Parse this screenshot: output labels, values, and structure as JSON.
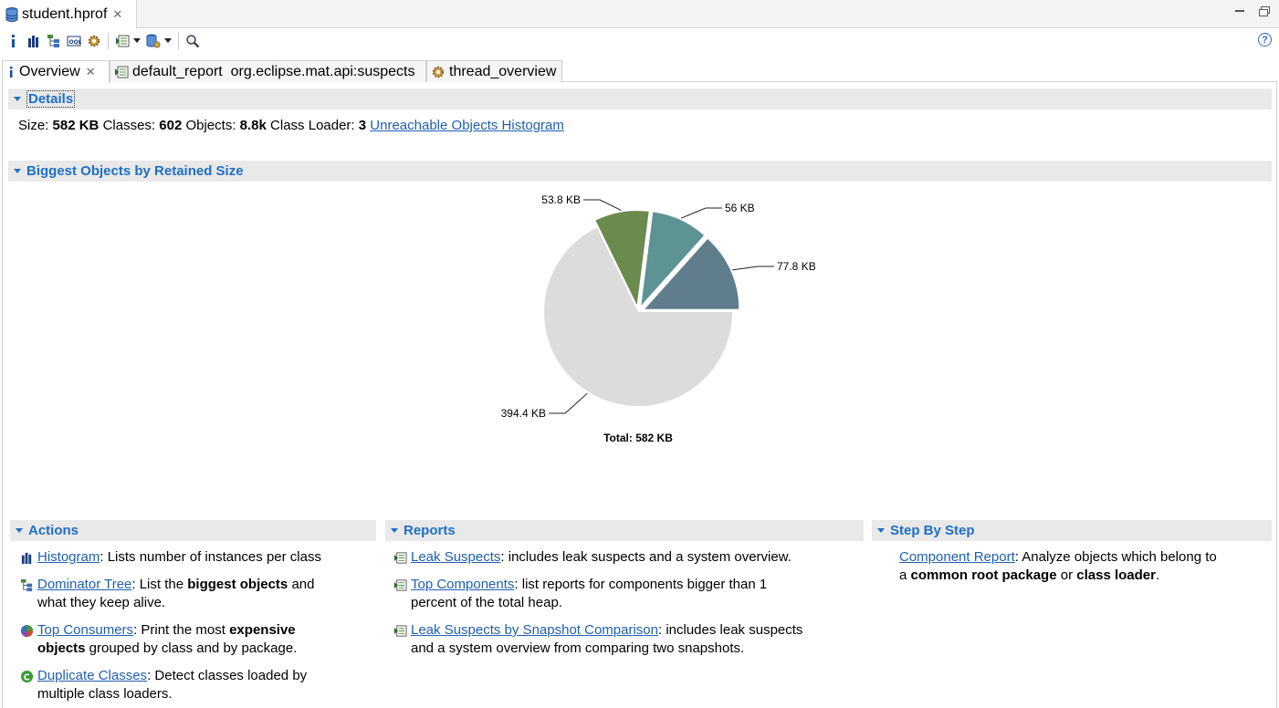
{
  "editor": {
    "tab_title": "student.hprof"
  },
  "tabs": [
    {
      "label": "Overview"
    },
    {
      "label": "default_report  org.eclipse.mat.api:suspects"
    },
    {
      "label": "thread_overview"
    }
  ],
  "details": {
    "header": "Details",
    "size_label": "Size:",
    "size_value": "582 KB",
    "classes_label": "Classes:",
    "classes_value": "602",
    "objects_label": "Objects:",
    "objects_value": "8.8k",
    "loader_label": "Class Loader:",
    "loader_value": "3",
    "link": "Unreachable Objects Histogram"
  },
  "biggest": {
    "header": "Biggest Objects by Retained Size",
    "total_label": "Total: 582 KB"
  },
  "chart_data": {
    "type": "pie",
    "total": 582,
    "slices": [
      {
        "label": "77.8 KB",
        "value": 77.8,
        "color": "#607d8b"
      },
      {
        "label": "56 KB",
        "value": 56,
        "color": "#5d9393"
      },
      {
        "label": "53.8 KB",
        "value": 53.8,
        "color": "#6b8a4e"
      },
      {
        "label": "394.4 KB",
        "value": 394.4,
        "color": "#dcdcdc"
      }
    ]
  },
  "actions": {
    "header": "Actions",
    "items": [
      {
        "link": "Histogram",
        "t1": ": Lists number of instances per class"
      },
      {
        "link": "Dominator Tree",
        "t1": ": List the ",
        "b1": "biggest objects",
        "t2": " and",
        "line2": "what they keep alive."
      },
      {
        "link": "Top Consumers",
        "t1": ": Print the most ",
        "b1": "expensive",
        "line2b": "objects",
        "line2": " grouped by class and by package."
      },
      {
        "link": "Duplicate Classes",
        "t1": ": Detect classes loaded by",
        "line2": "multiple class loaders."
      }
    ]
  },
  "reports": {
    "header": "Reports",
    "items": [
      {
        "link": "Leak Suspects",
        "t1": ": includes leak suspects and a system overview."
      },
      {
        "link": "Top Components",
        "t1": ": list reports for components bigger than 1",
        "line2": "percent of the total heap."
      },
      {
        "link": "Leak Suspects by Snapshot Comparison",
        "t1": ": includes leak suspects",
        "line2": "and a system overview from comparing two snapshots."
      }
    ]
  },
  "steps": {
    "header": "Step By Step",
    "items": [
      {
        "link": "Component Report",
        "t1": ": Analyze objects which belong to",
        "line2a": "a ",
        "b1": "common root package",
        "line2b": " or ",
        "b2": "class loader",
        "line2c": "."
      }
    ]
  }
}
